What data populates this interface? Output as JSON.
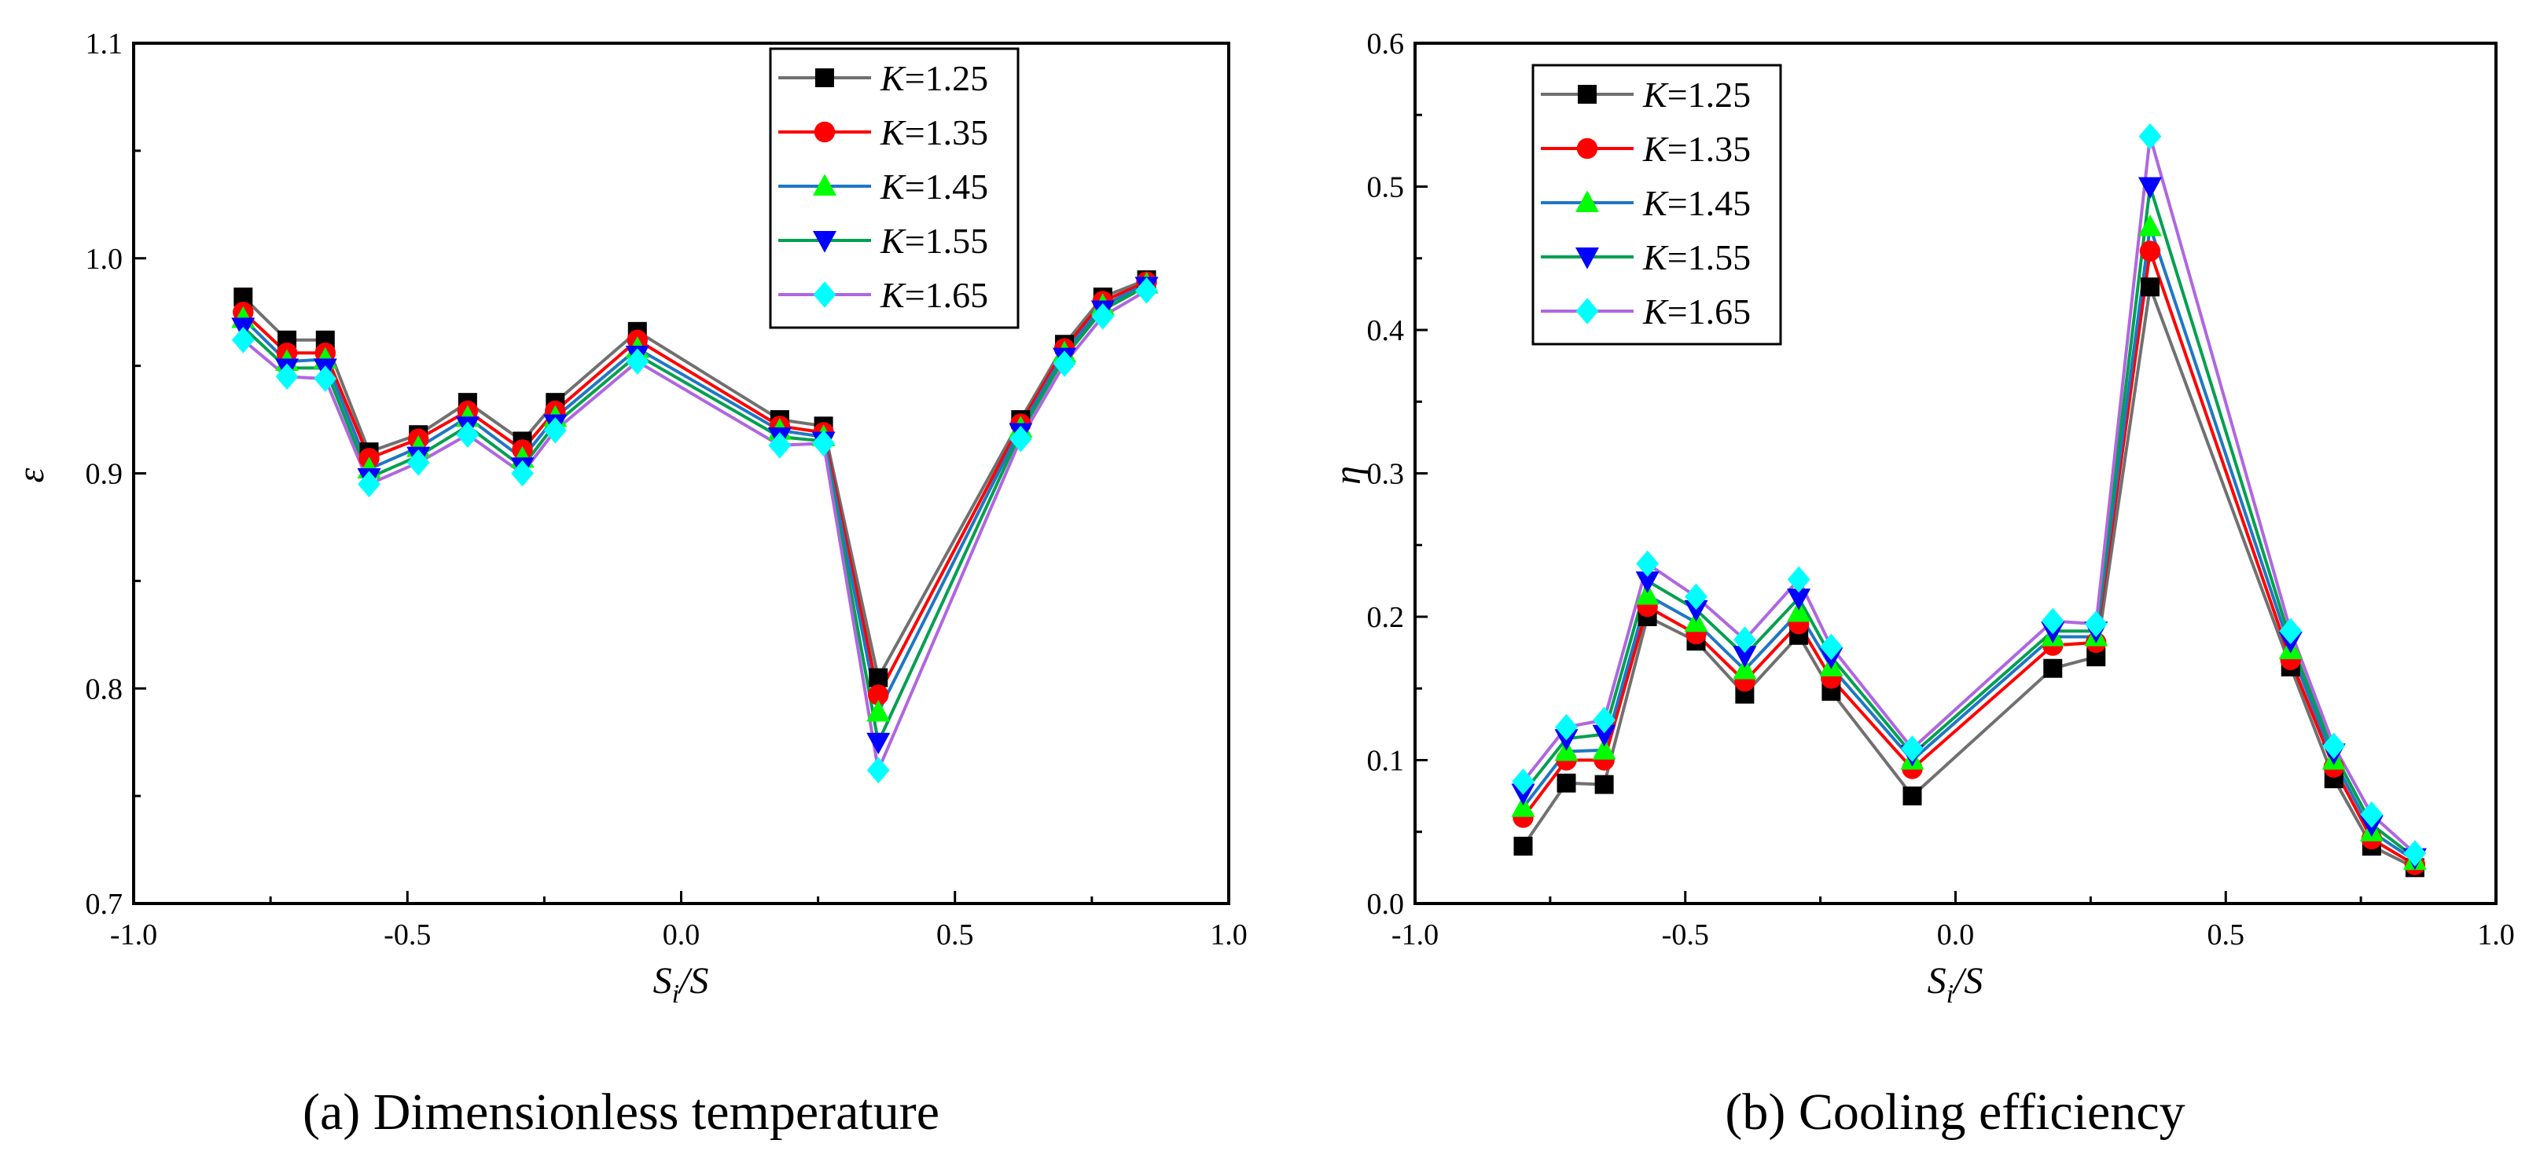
{
  "panels": [
    {
      "caption": "(a) Dimensionless temperature",
      "chart_data": {
        "type": "line",
        "xlabel": "Si/S",
        "ylabel": "ε",
        "xlim": [
          -1.0,
          1.0
        ],
        "ylim": [
          0.7,
          1.1
        ],
        "xticks": [
          -1.0,
          -0.5,
          0.0,
          0.5,
          1.0
        ],
        "xtick_labels": [
          "-1.0",
          "-0.5",
          "0.0",
          "0.5",
          "1.0"
        ],
        "yticks": [
          0.7,
          0.8,
          0.9,
          1.0,
          1.1
        ],
        "ytick_labels": [
          "0.7",
          "0.8",
          "0.9",
          "1.0",
          "1.1"
        ],
        "legend_position": "top-right",
        "x": [
          -0.8,
          -0.72,
          -0.65,
          -0.57,
          -0.48,
          -0.39,
          -0.29,
          -0.23,
          -0.08,
          0.18,
          0.26,
          0.36,
          0.62,
          0.7,
          0.77,
          0.85
        ],
        "series": [
          {
            "name": "K=1.25",
            "color": "#707070",
            "marker": "square",
            "marker_color": "#000000",
            "values": [
              0.982,
              0.962,
              0.962,
              0.91,
              0.918,
              0.933,
              0.915,
              0.933,
              0.966,
              0.925,
              0.922,
              0.805,
              0.925,
              0.96,
              0.982,
              0.99
            ]
          },
          {
            "name": "K=1.35",
            "color": "#ff0000",
            "marker": "circle",
            "marker_color": "#ff0000",
            "values": [
              0.975,
              0.956,
              0.956,
              0.907,
              0.916,
              0.929,
              0.911,
              0.929,
              0.962,
              0.922,
              0.919,
              0.797,
              0.923,
              0.958,
              0.98,
              0.989
            ]
          },
          {
            "name": "K=1.45",
            "color": "#1f77c4",
            "marker": "triangle-up",
            "marker_color": "#00ff00",
            "values": [
              0.972,
              0.952,
              0.953,
              0.902,
              0.912,
              0.926,
              0.907,
              0.926,
              0.958,
              0.92,
              0.917,
              0.789,
              0.921,
              0.956,
              0.978,
              0.988
            ]
          },
          {
            "name": "K=1.55",
            "color": "#00a050",
            "marker": "triangle-down",
            "marker_color": "#0000ff",
            "values": [
              0.968,
              0.949,
              0.949,
              0.898,
              0.908,
              0.922,
              0.903,
              0.923,
              0.955,
              0.917,
              0.915,
              0.775,
              0.919,
              0.954,
              0.976,
              0.987
            ]
          },
          {
            "name": "K=1.65",
            "color": "#b066e0",
            "marker": "diamond",
            "marker_color": "#00ffff",
            "values": [
              0.962,
              0.945,
              0.944,
              0.895,
              0.905,
              0.918,
              0.9,
              0.92,
              0.952,
              0.913,
              0.914,
              0.762,
              0.916,
              0.951,
              0.973,
              0.985
            ]
          }
        ]
      }
    },
    {
      "caption": "(b) Cooling efficiency",
      "chart_data": {
        "type": "line",
        "xlabel": "Si/S",
        "ylabel": "η",
        "xlim": [
          -1.0,
          1.0
        ],
        "ylim": [
          0.0,
          0.6
        ],
        "xticks": [
          -1.0,
          -0.5,
          0.0,
          0.5,
          1.0
        ],
        "xtick_labels": [
          "-1.0",
          "-0.5",
          "0.0",
          "0.5",
          "1.0"
        ],
        "yticks": [
          0.0,
          0.1,
          0.2,
          0.3,
          0.4,
          0.5,
          0.6
        ],
        "ytick_labels": [
          "0.0",
          "0.1",
          "0.2",
          "0.3",
          "0.4",
          "0.5",
          "0.6"
        ],
        "legend_position": "top-left",
        "x": [
          -0.8,
          -0.72,
          -0.65,
          -0.57,
          -0.48,
          -0.39,
          -0.29,
          -0.23,
          -0.08,
          0.18,
          0.26,
          0.36,
          0.62,
          0.7,
          0.77,
          0.85
        ],
        "series": [
          {
            "name": "K=1.25",
            "color": "#707070",
            "marker": "square",
            "marker_color": "#000000",
            "values": [
              0.04,
              0.084,
              0.083,
              0.2,
              0.183,
              0.146,
              0.187,
              0.148,
              0.075,
              0.164,
              0.172,
              0.43,
              0.165,
              0.087,
              0.04,
              0.025
            ]
          },
          {
            "name": "K=1.35",
            "color": "#ff0000",
            "marker": "circle",
            "marker_color": "#ff0000",
            "values": [
              0.06,
              0.1,
              0.1,
              0.207,
              0.188,
              0.155,
              0.195,
              0.157,
              0.094,
              0.18,
              0.182,
              0.455,
              0.17,
              0.095,
              0.045,
              0.027
            ]
          },
          {
            "name": "K=1.45",
            "color": "#1f77c4",
            "marker": "triangle-up",
            "marker_color": "#00ff00",
            "values": [
              0.067,
              0.106,
              0.107,
              0.215,
              0.196,
              0.163,
              0.203,
              0.165,
              0.1,
              0.186,
              0.186,
              0.472,
              0.177,
              0.1,
              0.05,
              0.03
            ]
          },
          {
            "name": "K=1.55",
            "color": "#00a050",
            "marker": "triangle-down",
            "marker_color": "#0000ff",
            "values": [
              0.077,
              0.115,
              0.118,
              0.225,
              0.205,
              0.173,
              0.213,
              0.172,
              0.104,
              0.19,
              0.19,
              0.5,
              0.183,
              0.105,
              0.055,
              0.032
            ]
          },
          {
            "name": "K=1.65",
            "color": "#b066e0",
            "marker": "diamond",
            "marker_color": "#00ffff",
            "values": [
              0.085,
              0.123,
              0.128,
              0.237,
              0.214,
              0.184,
              0.226,
              0.179,
              0.108,
              0.197,
              0.195,
              0.535,
              0.19,
              0.11,
              0.062,
              0.035
            ]
          }
        ]
      }
    }
  ]
}
